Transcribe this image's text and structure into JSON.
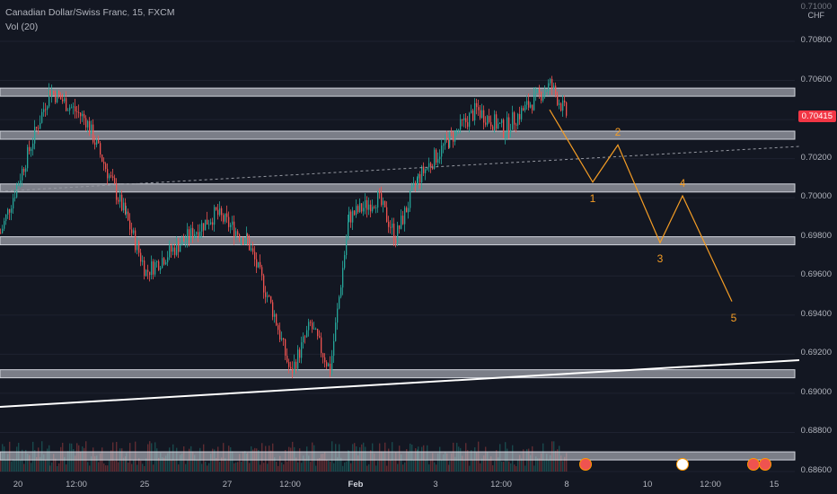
{
  "legend": {
    "symbol": "Canadian Dollar/Swiss Franc",
    "interval": "15",
    "source": "FXCM",
    "indicator": "Vol (20)"
  },
  "axis": {
    "currency": "CHF",
    "top_label": "0.71000",
    "price_labels": [
      "0.70800",
      "0.70600",
      "0.70400",
      "0.70200",
      "0.70000",
      "0.69800",
      "0.69600",
      "0.69400",
      "0.69200",
      "0.69000",
      "0.68800",
      "0.68600"
    ],
    "current_price": "0.70415",
    "time_labels": [
      "20",
      "12:00",
      "25",
      "27",
      "12:00",
      "Feb",
      "3",
      "12:00",
      "8",
      "10",
      "12:00",
      "15"
    ]
  },
  "wave_labels": [
    "1",
    "2",
    "3",
    "4",
    "5"
  ],
  "colors": {
    "background": "#131722",
    "up": "#26a69a",
    "down": "#ef5350",
    "zone": "#d1d4dc",
    "wave": "#f59d25",
    "trendline": "#ffffff",
    "price_tag": "#f23645"
  },
  "chart_data": {
    "type": "candlestick",
    "symbol": "Canadian Dollar/Swiss Franc",
    "interval": "15",
    "ylim": [
      0.686,
      0.711
    ],
    "horizontal_zones": [
      0.7054,
      0.7032,
      0.7005,
      0.6978,
      0.691,
      0.6868
    ],
    "price_path": [
      {
        "x": "20",
        "y": 0.6982
      },
      {
        "x": "12:00",
        "y": 0.7055
      },
      {
        "x": "12:00",
        "y": 0.704
      },
      {
        "x": "25",
        "y": 0.699
      },
      {
        "x": "25",
        "y": 0.6962
      },
      {
        "x": "27",
        "y": 0.6992
      },
      {
        "x": "27",
        "y": 0.6978
      },
      {
        "x": "12:00",
        "y": 0.694
      },
      {
        "x": "12:00",
        "y": 0.691
      },
      {
        "x": "12:00",
        "y": 0.6935
      },
      {
        "x": "12:00",
        "y": 0.6912
      },
      {
        "x": "Feb",
        "y": 0.699
      },
      {
        "x": "Feb",
        "y": 0.7
      },
      {
        "x": "3",
        "y": 0.698
      },
      {
        "x": "3",
        "y": 0.701
      },
      {
        "x": "3",
        "y": 0.703
      },
      {
        "x": "12:00",
        "y": 0.7045
      },
      {
        "x": "12:00",
        "y": 0.7035
      },
      {
        "x": "8",
        "y": 0.7058
      },
      {
        "x": "8",
        "y": 0.7041
      }
    ],
    "projected_wave": [
      {
        "label": "",
        "price": 0.7045
      },
      {
        "label": "1",
        "price": 0.7008
      },
      {
        "label": "2",
        "price": 0.7027
      },
      {
        "label": "3",
        "price": 0.6977
      },
      {
        "label": "4",
        "price": 0.7001
      },
      {
        "label": "5",
        "price": 0.6947
      }
    ],
    "last_price": 0.70415
  }
}
